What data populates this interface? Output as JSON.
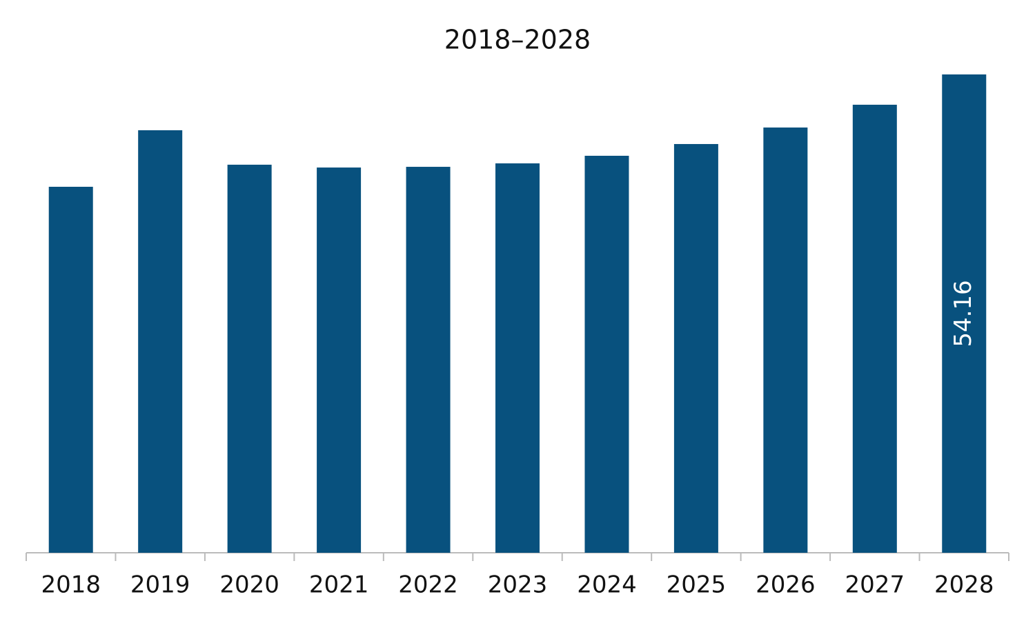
{
  "chart_data": {
    "type": "bar",
    "title": "2018–2028",
    "categories": [
      "2018",
      "2019",
      "2020",
      "2021",
      "2022",
      "2023",
      "2024",
      "2025",
      "2026",
      "2027",
      "2028"
    ],
    "values": [
      41.44,
      47.84,
      43.94,
      43.62,
      43.7,
      44.09,
      44.95,
      46.28,
      48.15,
      50.73,
      54.16
    ],
    "value_labels": [
      null,
      null,
      null,
      null,
      null,
      null,
      null,
      null,
      null,
      null,
      "54.16"
    ],
    "color": "#08517e"
  }
}
